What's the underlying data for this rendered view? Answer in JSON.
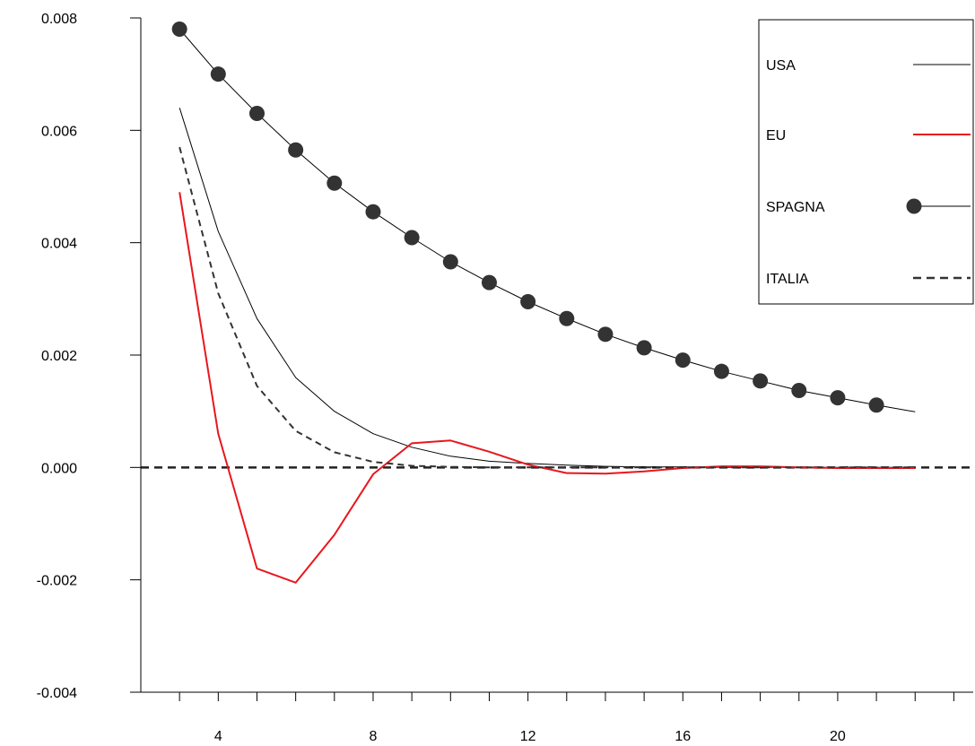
{
  "chart_data": {
    "type": "line",
    "title": "",
    "xlabel": "",
    "ylabel": "",
    "xlim": [
      2,
      23.5
    ],
    "ylim": [
      -0.004,
      0.008
    ],
    "xticks": [
      4,
      8,
      12,
      16,
      20
    ],
    "xtick_labels": [
      "4",
      "8",
      "12",
      "16",
      "20"
    ],
    "yticks": [
      -0.004,
      -0.002,
      0.0,
      0.002,
      0.004,
      0.006,
      0.008
    ],
    "ytick_labels": [
      "-0.004",
      "-0.002",
      "0.000",
      "0.002",
      "0.004",
      "0.006",
      "0.008"
    ],
    "minor_xticks": [
      3,
      4,
      5,
      6,
      7,
      8,
      9,
      10,
      11,
      12,
      13,
      14,
      15,
      16,
      17,
      18,
      19,
      20,
      21,
      22,
      23
    ],
    "zero_line": {
      "y": 0.0,
      "style": "dashed",
      "color": "#222222"
    },
    "grid": false,
    "legend_position": "top-right",
    "series": [
      {
        "name": "USA",
        "color": "#000000",
        "style": "solid",
        "marker": "none",
        "x": [
          3,
          4,
          5,
          6,
          7,
          8,
          9,
          10,
          11,
          12,
          13,
          14,
          15,
          16,
          17,
          18,
          19,
          20,
          21,
          22
        ],
        "y": [
          0.0064,
          0.0042,
          0.00265,
          0.0016,
          0.001,
          0.0006,
          0.00036,
          0.0002,
          0.00011,
          7e-05,
          4e-05,
          2e-05,
          1e-05,
          1e-05,
          0.0,
          0.0,
          0.0,
          0.0,
          0.0,
          0.0
        ]
      },
      {
        "name": "EU",
        "color": "#e8171d",
        "style": "solid",
        "marker": "none",
        "x": [
          3,
          4,
          5,
          6,
          7,
          8,
          9,
          10,
          11,
          12,
          13,
          14,
          15,
          16,
          17,
          18,
          19,
          20,
          21,
          22
        ],
        "y": [
          0.0049,
          0.0006,
          -0.0018,
          -0.00205,
          -0.0012,
          -0.00012,
          0.00043,
          0.00048,
          0.00028,
          5e-05,
          -0.0001,
          -0.00011,
          -7e-05,
          -1e-05,
          2e-05,
          2e-05,
          0.0,
          -1e-05,
          -1e-05,
          -1e-05
        ]
      },
      {
        "name": "SPAGNA",
        "color": "#000000",
        "marker_color": "#333333",
        "style": "solid",
        "marker": "circle",
        "x": [
          3,
          4,
          5,
          6,
          7,
          8,
          9,
          10,
          11,
          12,
          13,
          14,
          15,
          16,
          17,
          18,
          19,
          20,
          21,
          22
        ],
        "y": [
          0.0078,
          0.007,
          0.0063,
          0.00565,
          0.00506,
          0.00455,
          0.00409,
          0.00366,
          0.00329,
          0.00295,
          0.00265,
          0.00237,
          0.00213,
          0.00191,
          0.00171,
          0.00154,
          0.00137,
          0.00124,
          0.00111,
          0.00099
        ],
        "marker_x": [
          3,
          4,
          5,
          6,
          7,
          8,
          9,
          10,
          11,
          12,
          13,
          14,
          15,
          16,
          17,
          18,
          19,
          20,
          21
        ]
      },
      {
        "name": "ITALIA",
        "color": "#333333",
        "style": "dashed",
        "marker": "none",
        "x": [
          3,
          4,
          5,
          6,
          7,
          8,
          9,
          10,
          11,
          12,
          13,
          14,
          15,
          16,
          17,
          18,
          19,
          20,
          21,
          22
        ],
        "y": [
          0.0057,
          0.0031,
          0.00145,
          0.00065,
          0.00027,
          0.0001,
          3e-05,
          1e-05,
          0.0,
          0.0,
          0.0,
          0.0,
          0.0,
          0.0,
          0.0,
          0.0,
          0.0,
          0.0,
          0.0,
          0.0
        ]
      }
    ]
  }
}
